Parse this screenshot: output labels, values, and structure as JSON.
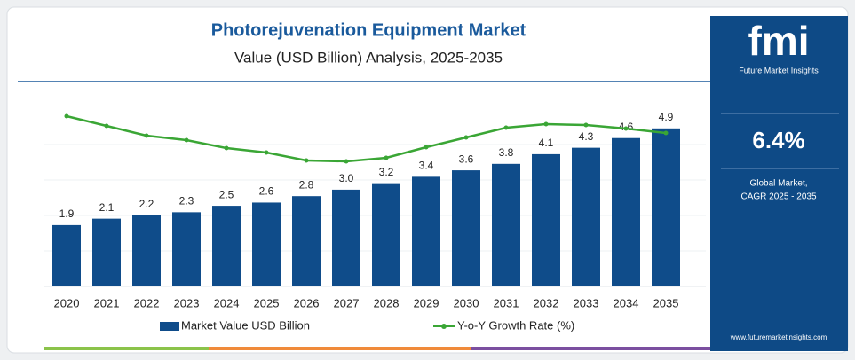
{
  "chart_data": {
    "type": "bar",
    "title": "Photorejuvenation Equipment Market",
    "subtitle": "Value (USD Billion) Analysis, 2025-2035",
    "categories": [
      "2020",
      "2021",
      "2022",
      "2023",
      "2024",
      "2025",
      "2026",
      "2027",
      "2028",
      "2029",
      "2030",
      "2031",
      "2032",
      "2033",
      "2034",
      "2035"
    ],
    "series": [
      {
        "name": "Market Value USD Billion",
        "color": "#0f4c8a",
        "values": [
          1.9,
          2.1,
          2.2,
          2.3,
          2.5,
          2.6,
          2.8,
          3.0,
          3.2,
          3.4,
          3.6,
          3.8,
          4.1,
          4.3,
          4.6,
          4.9
        ],
        "value_labels": [
          "1.9",
          "2.1",
          "2.2",
          "2.3",
          "2.5",
          "2.6",
          "2.8",
          "3.0",
          "3.2",
          "3.4",
          "3.6",
          "3.8",
          "4.1",
          "4.3",
          "4.6",
          "4.9"
        ]
      },
      {
        "name": "Y-o-Y Growth Rate (%)",
        "color": "#3aa635",
        "axis": "y2",
        "values": [
          9.6,
          9.05,
          8.5,
          8.25,
          7.8,
          7.55,
          7.1,
          7.05,
          7.25,
          7.85,
          8.4,
          8.95,
          9.15,
          9.1,
          8.9,
          8.65
        ]
      }
    ],
    "ylim": [
      0,
      5.5
    ],
    "y2lim": [
      0,
      10
    ]
  },
  "sidebar": {
    "logo": "fmi",
    "logo_subtitle": "Future Market Insights",
    "cagr": "6.4%",
    "cagr_label": [
      "Global Market,",
      "CAGR 2025 - 2035"
    ],
    "url": "www.futuremarketinsights.com"
  }
}
